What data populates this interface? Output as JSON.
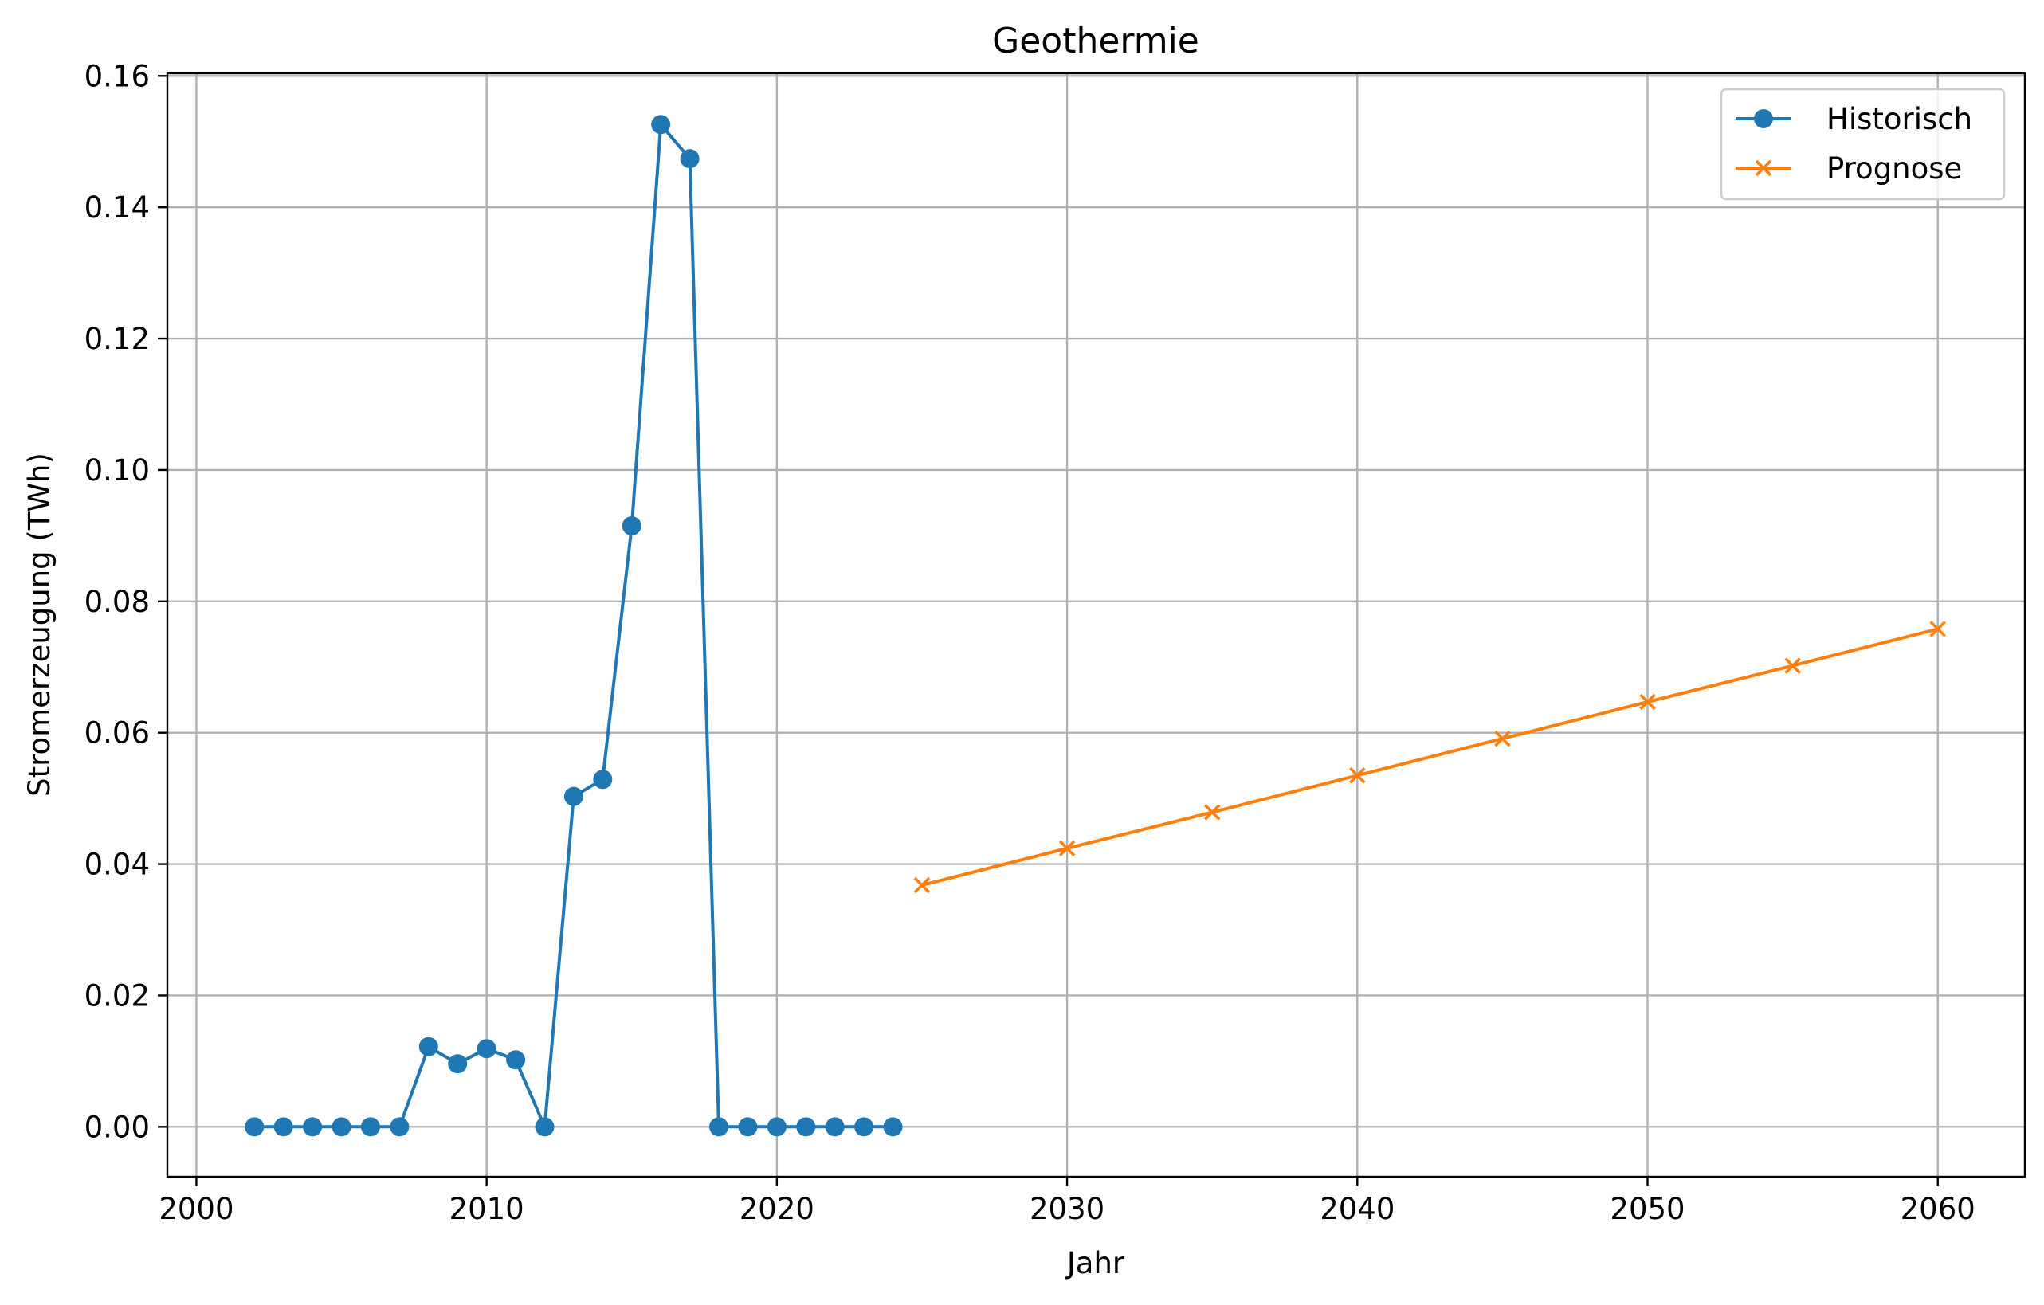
{
  "chart_data": {
    "type": "line",
    "title": "Geothermie",
    "xlabel": "Jahr",
    "ylabel": "Stromerzeugung (TWh)",
    "xlim": [
      1999,
      2063
    ],
    "ylim": [
      -0.0076,
      0.1604
    ],
    "x_ticks": [
      2000,
      2010,
      2020,
      2030,
      2040,
      2050,
      2060
    ],
    "y_ticks": [
      0.0,
      0.02,
      0.04,
      0.06,
      0.08,
      0.1,
      0.12,
      0.14,
      0.16
    ],
    "y_tick_labels": [
      "0.00",
      "0.02",
      "0.04",
      "0.06",
      "0.08",
      "0.10",
      "0.12",
      "0.14",
      "0.16"
    ],
    "grid": true,
    "legend_position": "top-right",
    "series": [
      {
        "name": "Historisch",
        "color": "#1f77b4",
        "marker": "circle",
        "x": [
          2002,
          2003,
          2004,
          2005,
          2006,
          2007,
          2008,
          2009,
          2010,
          2011,
          2012,
          2013,
          2014,
          2015,
          2016,
          2017,
          2018,
          2019,
          2020,
          2021,
          2022,
          2023,
          2024
        ],
        "y": [
          0.0,
          0.0,
          0.0,
          0.0,
          0.0,
          0.0,
          0.0122,
          0.0096,
          0.0119,
          0.0102,
          0.0,
          0.0503,
          0.0529,
          0.0915,
          0.1526,
          0.1474,
          0.0,
          0.0,
          0.0,
          0.0,
          0.0,
          0.0,
          0.0
        ]
      },
      {
        "name": "Prognose",
        "color": "#ff7f0e",
        "marker": "x",
        "x": [
          2025,
          2030,
          2035,
          2040,
          2045,
          2050,
          2055,
          2060
        ],
        "y": [
          0.0368,
          0.0424,
          0.0479,
          0.0535,
          0.0591,
          0.0647,
          0.0702,
          0.0758
        ]
      }
    ]
  }
}
